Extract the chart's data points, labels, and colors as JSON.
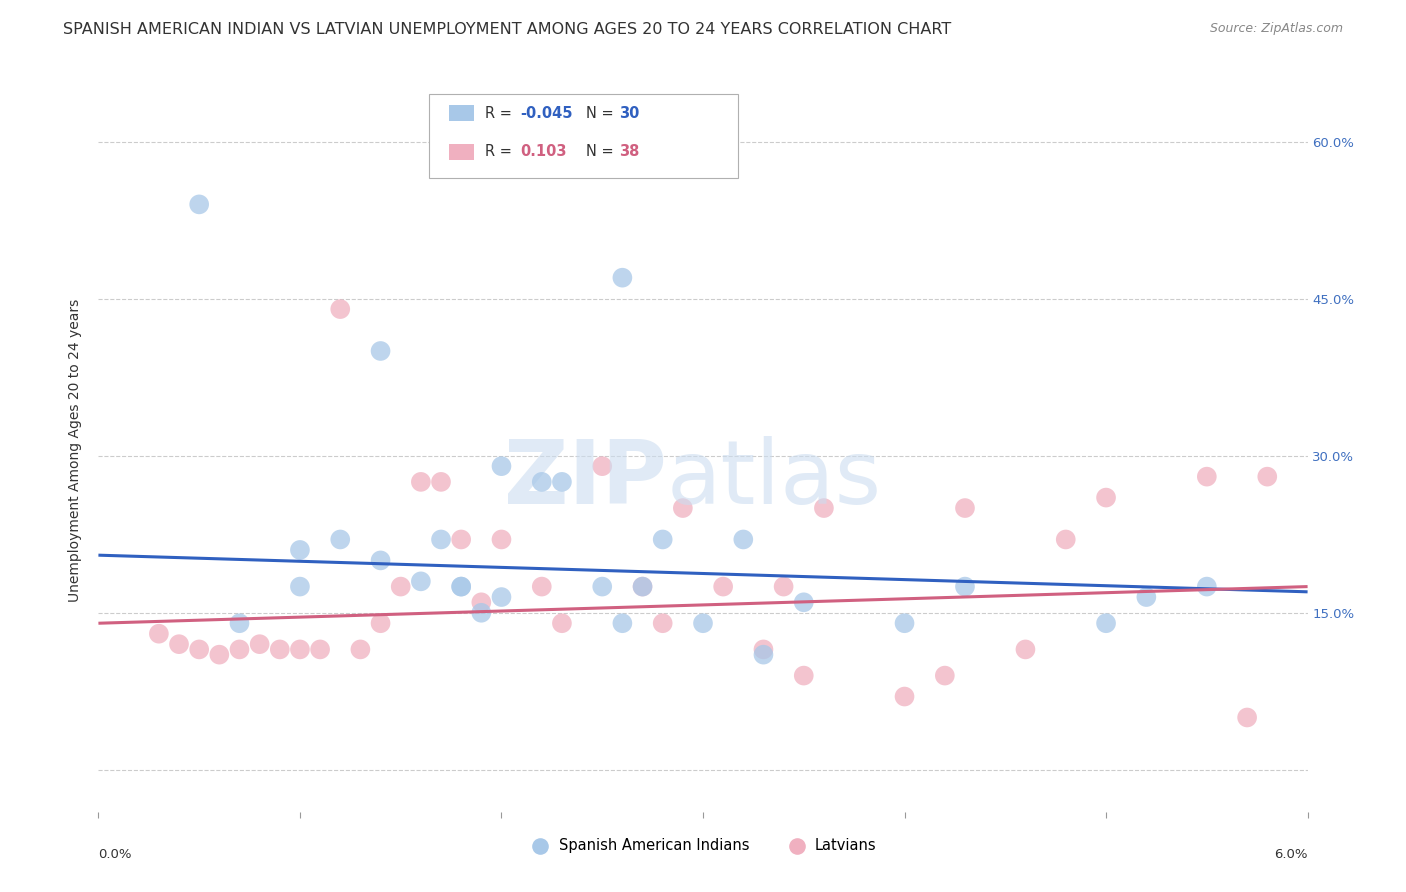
{
  "title": "SPANISH AMERICAN INDIAN VS LATVIAN UNEMPLOYMENT AMONG AGES 20 TO 24 YEARS CORRELATION CHART",
  "source": "Source: ZipAtlas.com",
  "ylabel": "Unemployment Among Ages 20 to 24 years",
  "xmin": 0.0,
  "xmax": 0.06,
  "ymin": -0.04,
  "ymax": 0.65,
  "blue_color": "#a8c8e8",
  "pink_color": "#f0b0c0",
  "blue_line_color": "#3060c0",
  "pink_line_color": "#d06080",
  "blue_scatter_x": [
    0.005,
    0.01,
    0.014,
    0.02,
    0.026,
    0.007,
    0.01,
    0.012,
    0.014,
    0.016,
    0.017,
    0.018,
    0.018,
    0.019,
    0.02,
    0.022,
    0.023,
    0.025,
    0.026,
    0.027,
    0.028,
    0.03,
    0.032,
    0.033,
    0.035,
    0.04,
    0.043,
    0.05,
    0.052,
    0.055
  ],
  "blue_scatter_y": [
    0.54,
    0.21,
    0.4,
    0.29,
    0.47,
    0.14,
    0.175,
    0.22,
    0.2,
    0.18,
    0.22,
    0.175,
    0.175,
    0.15,
    0.165,
    0.275,
    0.275,
    0.175,
    0.14,
    0.175,
    0.22,
    0.14,
    0.22,
    0.11,
    0.16,
    0.14,
    0.175,
    0.14,
    0.165,
    0.175
  ],
  "pink_scatter_x": [
    0.003,
    0.004,
    0.005,
    0.006,
    0.007,
    0.008,
    0.009,
    0.01,
    0.011,
    0.012,
    0.013,
    0.014,
    0.015,
    0.016,
    0.017,
    0.018,
    0.019,
    0.02,
    0.022,
    0.023,
    0.025,
    0.027,
    0.028,
    0.029,
    0.031,
    0.033,
    0.034,
    0.035,
    0.036,
    0.04,
    0.042,
    0.043,
    0.046,
    0.048,
    0.05,
    0.055,
    0.057,
    0.058
  ],
  "pink_scatter_y": [
    0.13,
    0.12,
    0.115,
    0.11,
    0.115,
    0.12,
    0.115,
    0.115,
    0.115,
    0.44,
    0.115,
    0.14,
    0.175,
    0.275,
    0.275,
    0.22,
    0.16,
    0.22,
    0.175,
    0.14,
    0.29,
    0.175,
    0.14,
    0.25,
    0.175,
    0.115,
    0.175,
    0.09,
    0.25,
    0.07,
    0.09,
    0.25,
    0.115,
    0.22,
    0.26,
    0.28,
    0.05,
    0.28
  ],
  "blue_trend_x": [
    0.0,
    0.06
  ],
  "blue_trend_y": [
    0.205,
    0.17
  ],
  "pink_trend_x": [
    0.0,
    0.06
  ],
  "pink_trend_y": [
    0.14,
    0.175
  ],
  "grid_color": "#cccccc",
  "background_color": "#ffffff",
  "title_fontsize": 11.5,
  "axis_label_fontsize": 10,
  "tick_fontsize": 9.5,
  "right_tick_color": "#4070c0"
}
